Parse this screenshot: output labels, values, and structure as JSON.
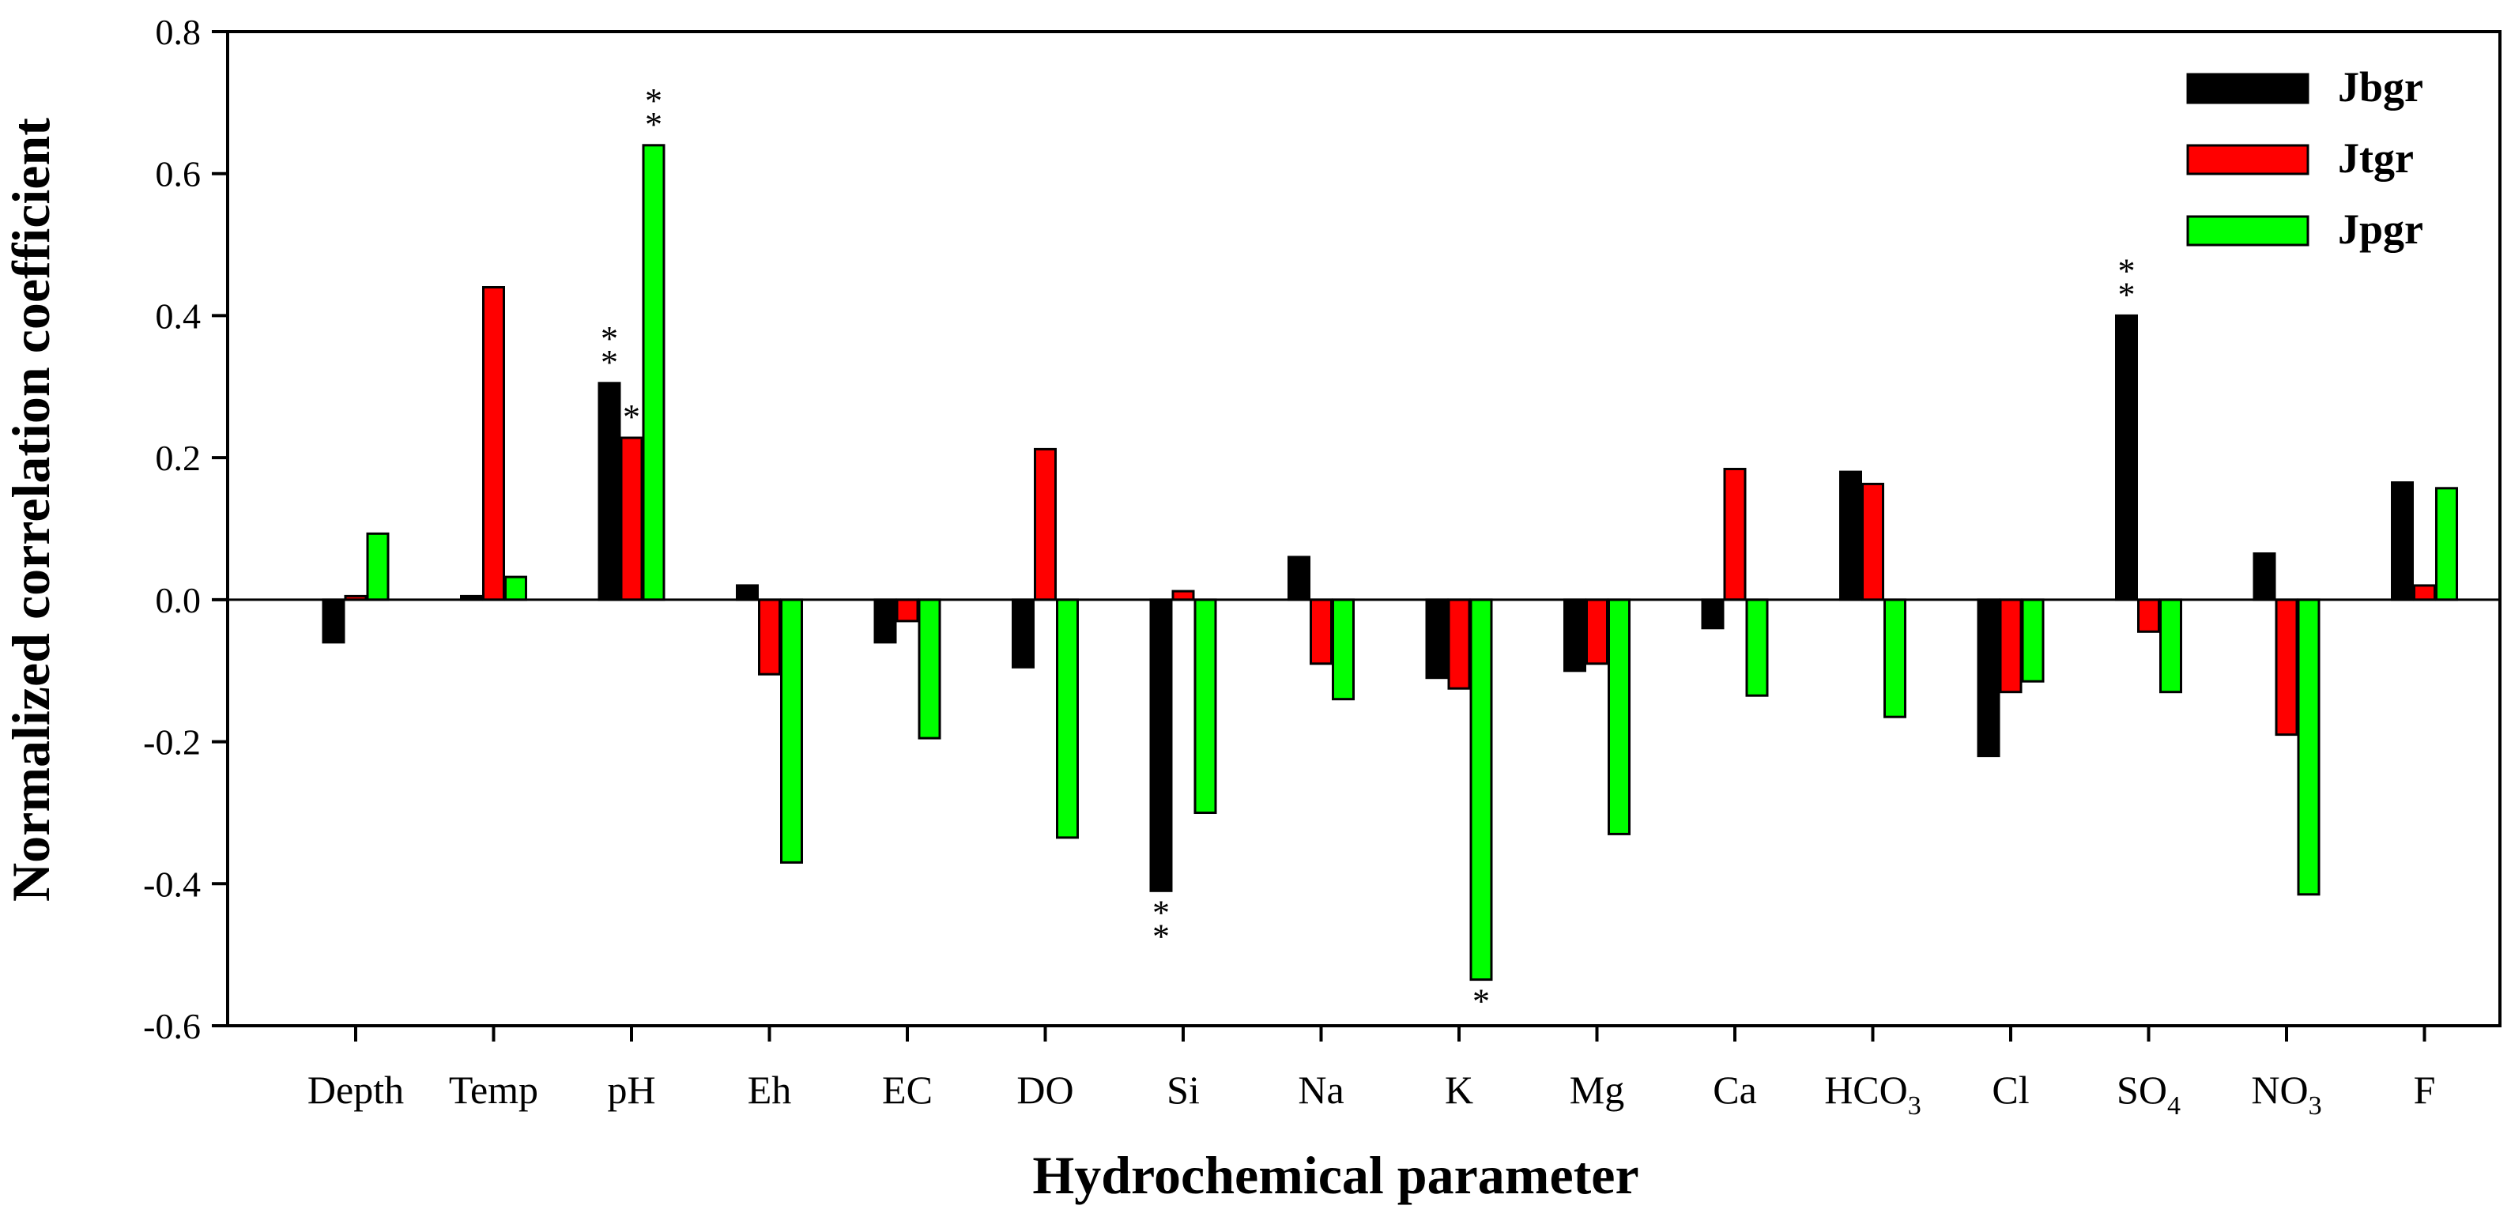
{
  "chart_data": {
    "type": "bar",
    "title": "",
    "xlabel": "Hydrochemical parameter",
    "ylabel": "Normalized correlation coefficient",
    "ylim": [
      -0.6,
      0.8
    ],
    "yticks": [
      "0.8",
      "0.6",
      "0.4",
      "0.2",
      "0.0",
      "-0.2",
      "-0.4",
      "-0.6"
    ],
    "ytick_values": [
      0.8,
      0.6,
      0.4,
      0.2,
      0.0,
      -0.2,
      -0.4,
      -0.6
    ],
    "categories": [
      {
        "main": "Depth"
      },
      {
        "main": "Temp"
      },
      {
        "main": "pH"
      },
      {
        "main": "Eh"
      },
      {
        "main": "EC"
      },
      {
        "main": "DO"
      },
      {
        "main": "Si"
      },
      {
        "main": "Na"
      },
      {
        "main": "K"
      },
      {
        "main": "Mg"
      },
      {
        "main": "Ca"
      },
      {
        "main": "HCO",
        "sub": "3"
      },
      {
        "main": "Cl"
      },
      {
        "main": "SO",
        "sub": "4"
      },
      {
        "main": "NO",
        "sub": "3"
      },
      {
        "main": "F"
      }
    ],
    "series": [
      {
        "name": "Jbgr",
        "color": "#000000",
        "values": [
          -0.06,
          0.005,
          0.305,
          0.02,
          -0.06,
          -0.095,
          -0.41,
          0.06,
          -0.11,
          -0.1,
          -0.04,
          0.18,
          -0.22,
          0.4,
          0.065,
          0.165
        ]
      },
      {
        "name": "Jtgr",
        "color": "#ff0000",
        "values": [
          0.005,
          0.44,
          0.228,
          -0.105,
          -0.03,
          0.212,
          0.012,
          -0.09,
          -0.125,
          -0.09,
          0.184,
          0.163,
          -0.13,
          -0.045,
          -0.19,
          0.02
        ]
      },
      {
        "name": "Jpgr",
        "color": "#00ff00",
        "values": [
          0.093,
          0.032,
          0.64,
          -0.37,
          -0.195,
          -0.335,
          -0.3,
          -0.14,
          -0.535,
          -0.33,
          -0.135,
          -0.165,
          -0.115,
          -0.13,
          -0.415,
          0.157
        ]
      }
    ],
    "significance": [
      {
        "category": 2,
        "series": 0,
        "mark": "**"
      },
      {
        "category": 2,
        "series": 1,
        "mark": "*"
      },
      {
        "category": 2,
        "series": 2,
        "mark": "**"
      },
      {
        "category": 6,
        "series": 0,
        "mark": "**"
      },
      {
        "category": 8,
        "series": 2,
        "mark": "*"
      },
      {
        "category": 13,
        "series": 0,
        "mark": "**"
      }
    ],
    "legend_position": "top-right",
    "grid": false
  }
}
